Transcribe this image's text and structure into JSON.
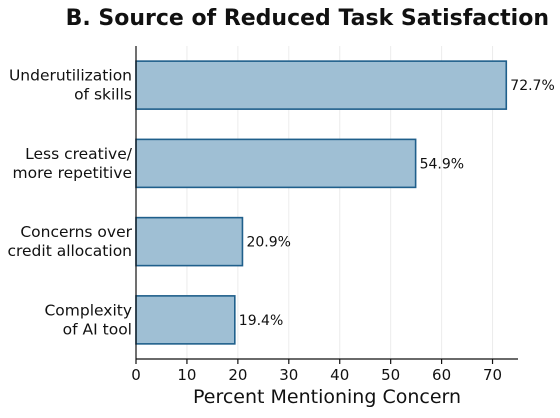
{
  "chart_data": {
    "type": "bar",
    "orientation": "horizontal",
    "title": "B. Source of Reduced Task Satisfaction",
    "xlabel": "Percent Mentioning Concern",
    "ylabel": "",
    "categories": [
      [
        "Underutilization",
        "of skills"
      ],
      [
        "Less creative/",
        "more repetitive"
      ],
      [
        "Concerns over",
        "credit allocation"
      ],
      [
        "Complexity",
        "of AI tool"
      ]
    ],
    "values": [
      72.7,
      54.9,
      20.9,
      19.4
    ],
    "value_labels": [
      "72.7%",
      "54.9%",
      "20.9%",
      "19.4%"
    ],
    "xlim": [
      0,
      75
    ],
    "xticks": [
      0,
      10,
      20,
      30,
      40,
      50,
      60,
      70
    ],
    "xtick_labels": [
      "0",
      "10",
      "20",
      "30",
      "40",
      "50",
      "60",
      "70"
    ],
    "grid": true,
    "bar_fill": "#9fbfd4",
    "bar_stroke": "#1f5f8b",
    "axis_color": "#111111",
    "grid_color": "#ececec"
  }
}
